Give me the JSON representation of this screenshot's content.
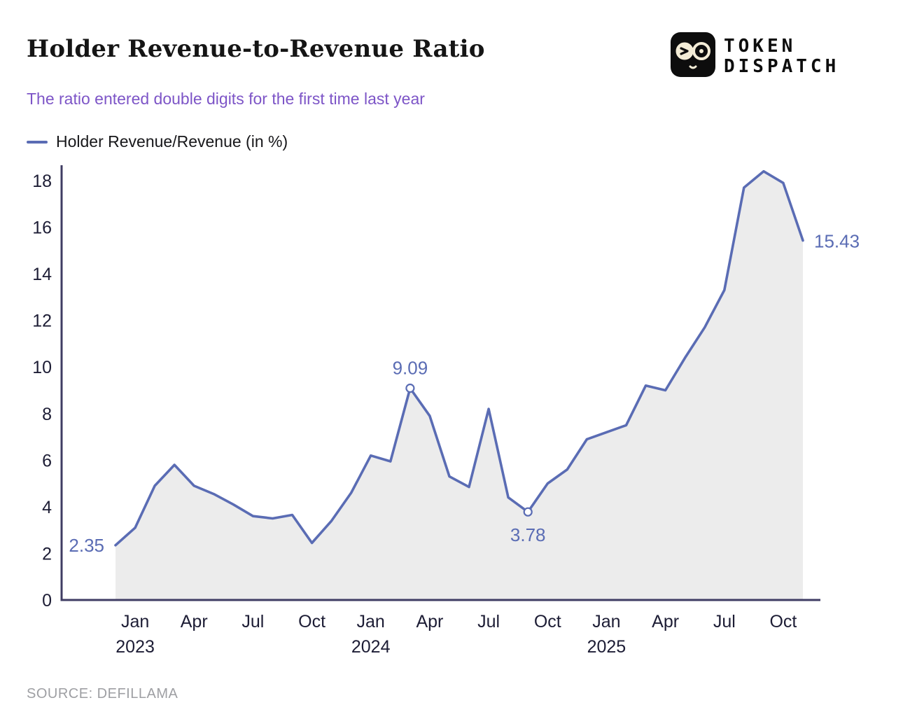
{
  "header": {
    "title": "Holder Revenue-to-Revenue Ratio",
    "subtitle": "The ratio entered double digits for the first time last year",
    "logo": {
      "line1": "TOKEN",
      "line2": "DISPATCH"
    }
  },
  "legend": {
    "label": "Holder Revenue/Revenue (in %)"
  },
  "footer": {
    "source": "SOURCE: DEFILLAMA"
  },
  "chart_data": {
    "type": "area",
    "title": "Holder Revenue-to-Revenue Ratio",
    "series_name": "Holder Revenue/Revenue (in %)",
    "x": [
      "Dec 2022",
      "Jan 2023",
      "Feb 2023",
      "Mar 2023",
      "Apr 2023",
      "May 2023",
      "Jun 2023",
      "Jul 2023",
      "Aug 2023",
      "Sep 2023",
      "Oct 2023",
      "Nov 2023",
      "Dec 2023",
      "Jan 2024",
      "Feb 2024",
      "Mar 2024",
      "Apr 2024",
      "May 2024",
      "Jun 2024",
      "Jul 2024",
      "Aug 2024",
      "Sep 2024",
      "Oct 2024",
      "Nov 2024",
      "Dec 2024",
      "Jan 2025",
      "Feb 2025",
      "Mar 2025",
      "Apr 2025",
      "May 2025",
      "Jun 2025",
      "Jul 2025",
      "Aug 2025",
      "Sep 2025",
      "Oct 2025",
      "Nov 2025"
    ],
    "values": [
      2.35,
      3.1,
      4.9,
      5.8,
      4.9,
      4.55,
      4.1,
      3.6,
      3.5,
      3.65,
      2.45,
      3.4,
      4.6,
      6.2,
      5.95,
      9.09,
      7.9,
      5.3,
      4.85,
      8.2,
      4.4,
      3.78,
      5.0,
      5.6,
      6.9,
      7.2,
      7.5,
      9.2,
      9.0,
      10.4,
      11.7,
      13.3,
      17.7,
      18.4,
      17.9,
      15.43
    ],
    "ylim": [
      0,
      18
    ],
    "yticks": [
      0,
      2,
      4,
      6,
      8,
      10,
      12,
      14,
      16,
      18
    ],
    "xticks": [
      {
        "index": 1,
        "label": "Jan",
        "year": "2023"
      },
      {
        "index": 4,
        "label": "Apr"
      },
      {
        "index": 7,
        "label": "Jul"
      },
      {
        "index": 10,
        "label": "Oct"
      },
      {
        "index": 13,
        "label": "Jan",
        "year": "2024"
      },
      {
        "index": 16,
        "label": "Apr"
      },
      {
        "index": 19,
        "label": "Jul"
      },
      {
        "index": 22,
        "label": "Oct"
      },
      {
        "index": 25,
        "label": "Jan",
        "year": "2025"
      },
      {
        "index": 28,
        "label": "Apr"
      },
      {
        "index": 31,
        "label": "Jul"
      },
      {
        "index": 34,
        "label": "Oct"
      }
    ],
    "annotations": [
      {
        "index": 0,
        "label": "2.35",
        "position": "left",
        "marker": false
      },
      {
        "index": 15,
        "label": "9.09",
        "position": "above",
        "marker": true
      },
      {
        "index": 21,
        "label": "3.78",
        "position": "below",
        "marker": true
      },
      {
        "index": 35,
        "label": "15.43",
        "position": "right",
        "marker": false
      }
    ],
    "line_color": "#5a6cb4",
    "area_color": "#ececec",
    "axis_color": "#3f3c63",
    "grid": false,
    "legend_position": "top-left"
  }
}
